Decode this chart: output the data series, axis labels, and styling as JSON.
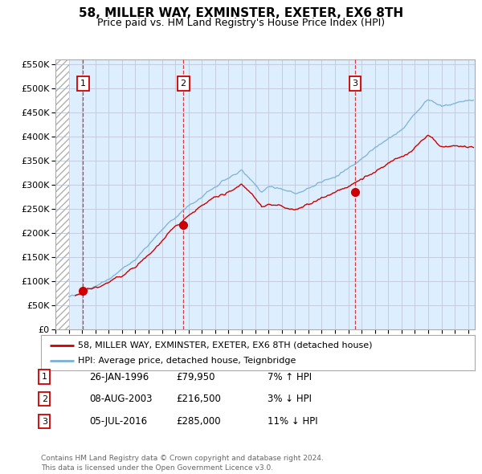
{
  "title": "58, MILLER WAY, EXMINSTER, EXETER, EX6 8TH",
  "subtitle": "Price paid vs. HM Land Registry's House Price Index (HPI)",
  "legend_line1": "58, MILLER WAY, EXMINSTER, EXETER, EX6 8TH (detached house)",
  "legend_line2": "HPI: Average price, detached house, Teignbridge",
  "footer": "Contains HM Land Registry data © Crown copyright and database right 2024.\nThis data is licensed under the Open Government Licence v3.0.",
  "ylim": [
    0,
    560000
  ],
  "xlim_start": 1994.0,
  "xlim_end": 2025.5,
  "hatch_end": 1995.0,
  "red_color": "#cc0000",
  "blue_color": "#7ab0d4",
  "background_color": "#ddeeff",
  "grid_color": "#c0c8d8",
  "trans_years": [
    1996.07,
    2003.6,
    2016.51
  ],
  "trans_prices": [
    79950,
    216500,
    285000
  ],
  "table_data": [
    [
      "1",
      "26-JAN-1996",
      "£79,950",
      "7% ↑ HPI"
    ],
    [
      "2",
      "08-AUG-2003",
      "£216,500",
      "3% ↓ HPI"
    ],
    [
      "3",
      "05-JUL-2016",
      "£285,000",
      "11% ↓ HPI"
    ]
  ]
}
